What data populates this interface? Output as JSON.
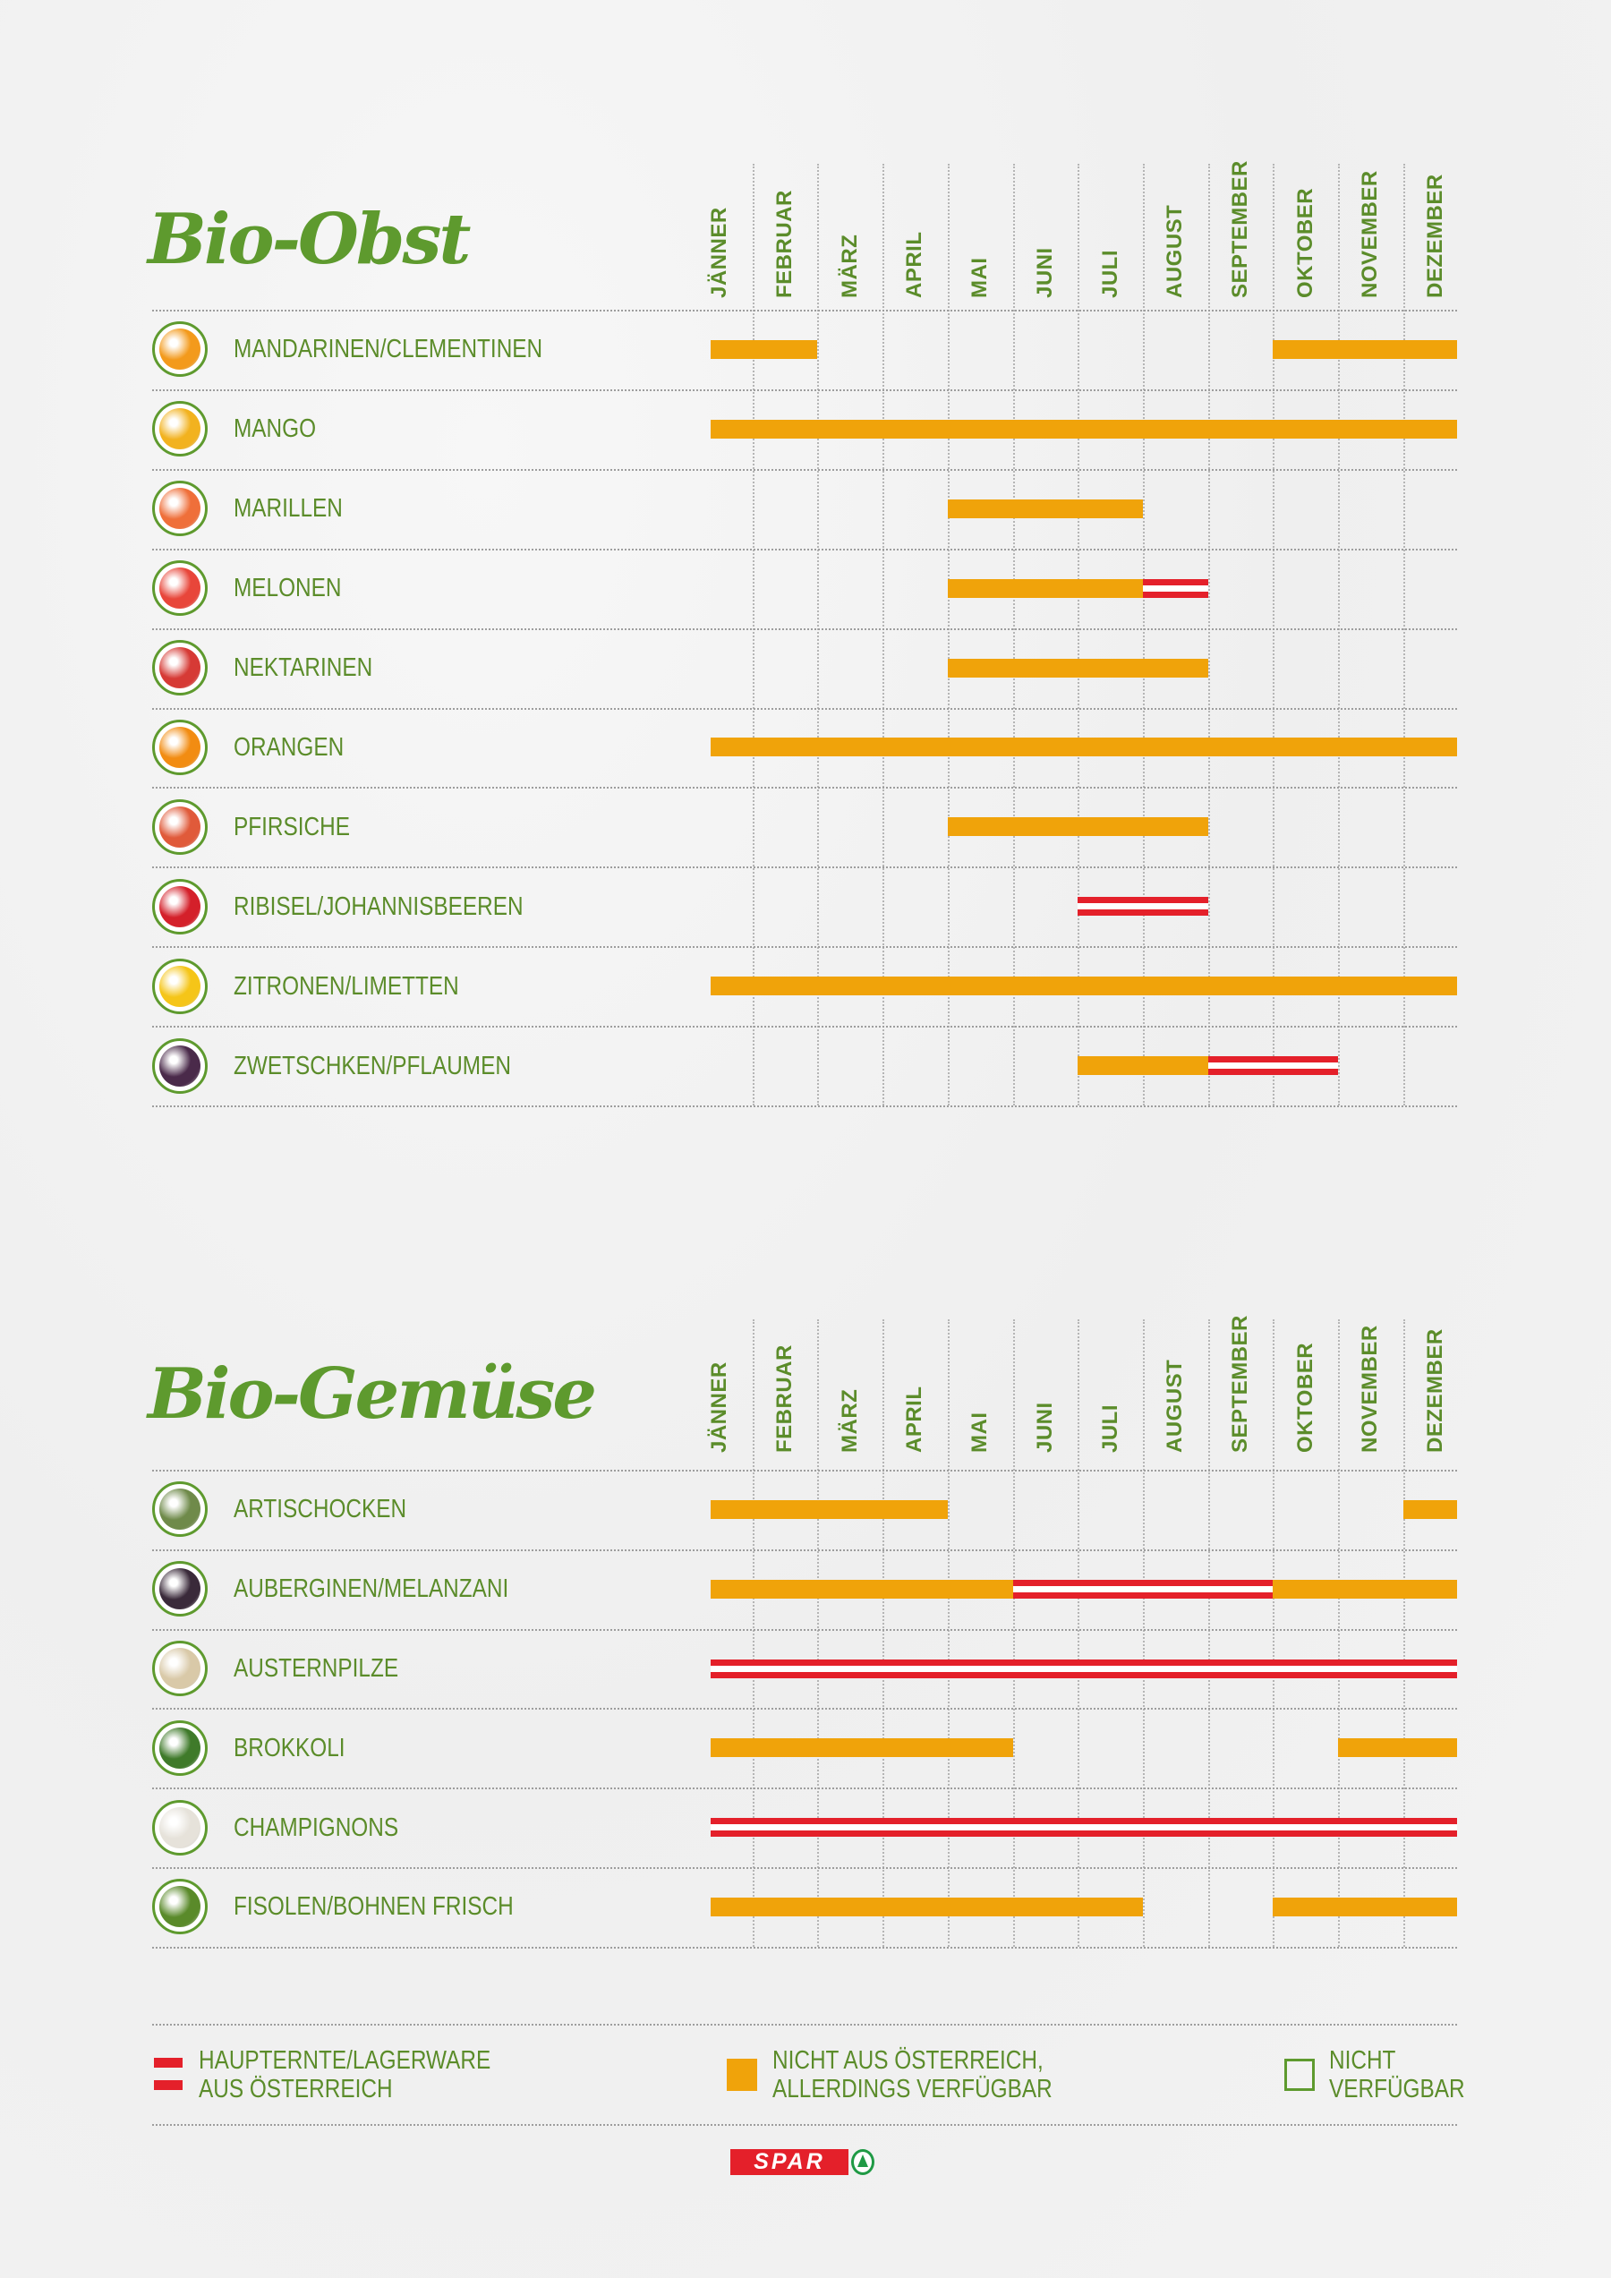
{
  "colors": {
    "main_harvest_austria": "#e4202a",
    "not_austria_available": "#f0a30a",
    "text_green": "#5b8c2a"
  },
  "chart_data": [
    {
      "type": "table",
      "title": "Bio-Obst",
      "months": [
        "JÄNNER",
        "FEBRUAR",
        "MÄRZ",
        "APRIL",
        "MAI",
        "JUNI",
        "JULI",
        "AUGUST",
        "SEPTEMBER",
        "OKTOBER",
        "NOVEMBER",
        "DEZEMBER"
      ],
      "legend_codes": {
        "r": "HAUPTERNTE/LAGERWARE AUS ÖSTERREICH",
        "o": "NICHT AUS ÖSTERREICH, ALLERDINGS VERFÜGBAR",
        "": "NICHT VERFÜGBAR"
      },
      "rows": [
        {
          "name": "MANDARINEN/CLEMENTINEN",
          "icon": "mandarin-icon",
          "color": "#f39a1c",
          "months": [
            "o",
            "o",
            "",
            "",
            "",
            "",
            "",
            "",
            "",
            "o",
            "o",
            "o"
          ]
        },
        {
          "name": "MANGO",
          "icon": "mango-icon",
          "color": "#f2b21f",
          "months": [
            "o",
            "o",
            "o",
            "o",
            "o",
            "o",
            "o",
            "o",
            "o",
            "o",
            "o",
            "o"
          ]
        },
        {
          "name": "MARILLEN",
          "icon": "apricot-icon",
          "color": "#ef6f3a",
          "months": [
            "",
            "",
            "",
            "",
            "o",
            "o",
            "o",
            "",
            "",
            "",
            "",
            ""
          ]
        },
        {
          "name": "MELONEN",
          "icon": "melon-icon",
          "color": "#e8463a",
          "months": [
            "",
            "",
            "",
            "",
            "o",
            "o",
            "o",
            "r",
            "",
            "",
            "",
            ""
          ]
        },
        {
          "name": "NEKTARINEN",
          "icon": "nectarine-icon",
          "color": "#d63a35",
          "months": [
            "",
            "",
            "",
            "",
            "o",
            "o",
            "o",
            "o",
            "",
            "",
            "",
            ""
          ]
        },
        {
          "name": "ORANGEN",
          "icon": "orange-icon",
          "color": "#f28c12",
          "months": [
            "o",
            "o",
            "o",
            "o",
            "o",
            "o",
            "o",
            "o",
            "o",
            "o",
            "o",
            "o"
          ]
        },
        {
          "name": "PFIRSICHE",
          "icon": "peach-icon",
          "color": "#e05a3a",
          "months": [
            "",
            "",
            "",
            "",
            "o",
            "o",
            "o",
            "o",
            "",
            "",
            "",
            ""
          ]
        },
        {
          "name": "RIBISEL/JOHANNISBEEREN",
          "icon": "redcurrant-icon",
          "color": "#d4202a",
          "months": [
            "",
            "",
            "",
            "",
            "",
            "",
            "r",
            "r",
            "",
            "",
            "",
            ""
          ]
        },
        {
          "name": "ZITRONEN/LIMETTEN",
          "icon": "lemon-icon",
          "color": "#f5c518",
          "months": [
            "o",
            "o",
            "o",
            "o",
            "o",
            "o",
            "o",
            "o",
            "o",
            "o",
            "o",
            "o"
          ]
        },
        {
          "name": "ZWETSCHKEN/PFLAUMEN",
          "icon": "plum-icon",
          "color": "#4a2a4a",
          "months": [
            "",
            "",
            "",
            "",
            "",
            "",
            "o",
            "o",
            "r",
            "r",
            "",
            ""
          ]
        }
      ]
    },
    {
      "type": "table",
      "title": "Bio-Gemüse",
      "months": [
        "JÄNNER",
        "FEBRUAR",
        "MÄRZ",
        "APRIL",
        "MAI",
        "JUNI",
        "JULI",
        "AUGUST",
        "SEPTEMBER",
        "OKTOBER",
        "NOVEMBER",
        "DEZEMBER"
      ],
      "rows": [
        {
          "name": "ARTISCHOCKEN",
          "icon": "artichoke-icon",
          "color": "#6f8a4a",
          "months": [
            "o",
            "o",
            "o",
            "o",
            "",
            "",
            "",
            "",
            "",
            "",
            "",
            "o"
          ]
        },
        {
          "name": "AUBERGINEN/MELANZANI",
          "icon": "eggplant-icon",
          "color": "#3a2a3a",
          "months": [
            "o",
            "o",
            "o",
            "o",
            "o",
            "r",
            "r",
            "r",
            "r",
            "o",
            "o",
            "o"
          ]
        },
        {
          "name": "AUSTERNPILZE",
          "icon": "oyster-mushroom-icon",
          "color": "#d9c9a8",
          "months": [
            "r",
            "r",
            "r",
            "r",
            "r",
            "r",
            "r",
            "r",
            "r",
            "r",
            "r",
            "r"
          ]
        },
        {
          "name": "BROKKOLI",
          "icon": "broccoli-icon",
          "color": "#3f7a2a",
          "months": [
            "o",
            "o",
            "o",
            "o",
            "o",
            "",
            "",
            "",
            "",
            "",
            "o",
            "o"
          ]
        },
        {
          "name": "CHAMPIGNONS",
          "icon": "mushroom-icon",
          "color": "#e6e2da",
          "months": [
            "r",
            "r",
            "r",
            "r",
            "r",
            "r",
            "r",
            "r",
            "r",
            "r",
            "r",
            "r"
          ]
        },
        {
          "name": "FISOLEN/BOHNEN FRISCH",
          "icon": "green-beans-icon",
          "color": "#5a8a2a",
          "months": [
            "o",
            "o",
            "o",
            "o",
            "o",
            "o",
            "o",
            "",
            "",
            "o",
            "o",
            "o"
          ]
        }
      ]
    }
  ],
  "legend": {
    "red_label_1": "HAUPTERNTE/LAGERWARE",
    "red_label_2": "AUS ÖSTERREICH",
    "orange_label_1": "NICHT AUS ÖSTERREICH,",
    "orange_label_2": "ALLERDINGS VERFÜGBAR",
    "empty_label_1": "NICHT",
    "empty_label_2": "VERFÜGBAR"
  },
  "logo": {
    "text": "SPAR"
  }
}
